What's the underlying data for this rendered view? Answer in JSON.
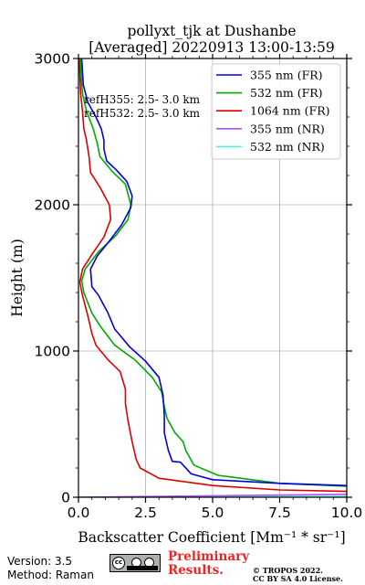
{
  "chart_data": {
    "type": "line",
    "title": "pollyxt_tjk at Dushanbe",
    "subtitle": "[Averaged] 20220913 13:00-13:59",
    "xlabel": "Backscatter Coefficient [Mm⁻¹ * sr⁻¹]",
    "ylabel": "Height (m)",
    "xlim": [
      0,
      10
    ],
    "ylim": [
      0,
      3000
    ],
    "xticks": [
      "0.0",
      "2.5",
      "5.0",
      "7.5",
      "10.0"
    ],
    "yticks": [
      "0",
      "1000",
      "2000",
      "3000"
    ],
    "grid": true,
    "legend_position": "top-right",
    "annotations": [
      "refH355:  2.5- 3.0 km",
      "refH532:  2.5- 3.0 km"
    ],
    "series": [
      {
        "name": "355 nm (FR)",
        "color": "#0000dd",
        "points": [
          [
            10.0,
            80
          ],
          [
            7.5,
            95
          ],
          [
            5.0,
            120
          ],
          [
            4.2,
            160
          ],
          [
            3.8,
            240
          ],
          [
            3.5,
            245
          ],
          [
            3.35,
            320
          ],
          [
            3.2,
            440
          ],
          [
            3.2,
            560
          ],
          [
            3.15,
            700
          ],
          [
            3.0,
            820
          ],
          [
            2.5,
            930
          ],
          [
            1.9,
            1030
          ],
          [
            1.35,
            1150
          ],
          [
            1.1,
            1260
          ],
          [
            0.75,
            1380
          ],
          [
            0.5,
            1440
          ],
          [
            0.45,
            1560
          ],
          [
            0.7,
            1650
          ],
          [
            1.1,
            1740
          ],
          [
            1.6,
            1860
          ],
          [
            1.95,
            1980
          ],
          [
            2.0,
            2060
          ],
          [
            1.8,
            2160
          ],
          [
            1.4,
            2240
          ],
          [
            1.05,
            2300
          ],
          [
            0.95,
            2380
          ],
          [
            0.95,
            2440
          ],
          [
            0.85,
            2520
          ],
          [
            0.65,
            2600
          ],
          [
            0.35,
            2700
          ],
          [
            0.18,
            2820
          ],
          [
            0.12,
            3000
          ]
        ]
      },
      {
        "name": "532 nm (FR)",
        "color": "#00aa00",
        "points": [
          [
            10.0,
            75
          ],
          [
            7.5,
            95
          ],
          [
            5.2,
            150
          ],
          [
            4.3,
            220
          ],
          [
            4.0,
            320
          ],
          [
            3.9,
            380
          ],
          [
            3.6,
            440
          ],
          [
            3.3,
            540
          ],
          [
            3.2,
            620
          ],
          [
            3.1,
            720
          ],
          [
            2.75,
            820
          ],
          [
            2.1,
            940
          ],
          [
            1.35,
            1040
          ],
          [
            0.85,
            1160
          ],
          [
            0.5,
            1260
          ],
          [
            0.2,
            1400
          ],
          [
            0.12,
            1480
          ],
          [
            0.25,
            1560
          ],
          [
            0.75,
            1680
          ],
          [
            1.4,
            1790
          ],
          [
            1.85,
            1900
          ],
          [
            1.95,
            2000
          ],
          [
            1.75,
            2140
          ],
          [
            1.25,
            2230
          ],
          [
            0.8,
            2330
          ],
          [
            0.7,
            2420
          ],
          [
            0.55,
            2520
          ],
          [
            0.3,
            2640
          ],
          [
            0.15,
            2760
          ],
          [
            0.1,
            2880
          ],
          [
            0.08,
            3000
          ]
        ]
      },
      {
        "name": "1064 nm (FR)",
        "color": "#dd0000",
        "points": [
          [
            10.0,
            40
          ],
          [
            7.5,
            50
          ],
          [
            5.0,
            80
          ],
          [
            3.0,
            130
          ],
          [
            2.3,
            200
          ],
          [
            2.15,
            260
          ],
          [
            2.0,
            380
          ],
          [
            1.85,
            520
          ],
          [
            1.75,
            640
          ],
          [
            1.75,
            740
          ],
          [
            1.55,
            860
          ],
          [
            1.1,
            940
          ],
          [
            0.65,
            1040
          ],
          [
            0.5,
            1120
          ],
          [
            0.35,
            1240
          ],
          [
            0.15,
            1380
          ],
          [
            0.05,
            1470
          ],
          [
            0.15,
            1560
          ],
          [
            0.5,
            1660
          ],
          [
            0.95,
            1780
          ],
          [
            1.2,
            1900
          ],
          [
            1.15,
            2000
          ],
          [
            0.8,
            2120
          ],
          [
            0.45,
            2220
          ],
          [
            0.4,
            2320
          ],
          [
            0.3,
            2440
          ],
          [
            0.2,
            2520
          ],
          [
            0.15,
            2640
          ],
          [
            0.08,
            2760
          ],
          [
            0.05,
            2900
          ],
          [
            0.03,
            3000
          ]
        ]
      },
      {
        "name": "355 nm (NR)",
        "color": "#aa55ee",
        "points": [
          [
            0.0,
            0
          ],
          [
            10.0,
            20
          ]
        ]
      },
      {
        "name": "532 nm (NR)",
        "color": "#55eedd",
        "points": [
          [
            0.0,
            0
          ],
          [
            10.0,
            5
          ]
        ]
      }
    ]
  },
  "footer": {
    "version": "Version: 3.5",
    "method": "Method: Raman",
    "preliminary_line1": "Preliminary",
    "preliminary_line2": "Results.",
    "preliminary_color": "#ee2222",
    "copyright_line1": "© TROPOS 2022.",
    "copyright_line2": "CC BY SA 4.0 License.",
    "cc_badge_text": "cc"
  }
}
